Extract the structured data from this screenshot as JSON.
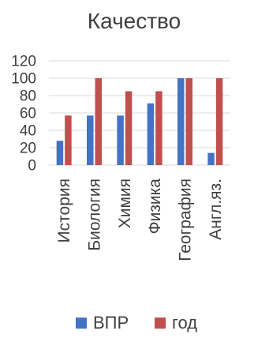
{
  "chart_data": {
    "type": "bar",
    "title": "Качество",
    "xlabel": "",
    "ylabel": "",
    "categories": [
      "История",
      "Биология",
      "Химия",
      "Физика",
      "География",
      "Англ.яз."
    ],
    "series": [
      {
        "name": "ВПР",
        "values": [
          28,
          57,
          57,
          71,
          100,
          14
        ],
        "color": "#4472C4"
      },
      {
        "name": "год",
        "values": [
          57,
          100,
          85,
          85,
          100,
          100
        ],
        "color": "#C0504D"
      }
    ],
    "ylim": [
      0,
      120
    ],
    "yticks": [
      "0",
      "20",
      "40",
      "60",
      "80",
      "100",
      "120"
    ],
    "grid": true,
    "legend": "bottom"
  }
}
